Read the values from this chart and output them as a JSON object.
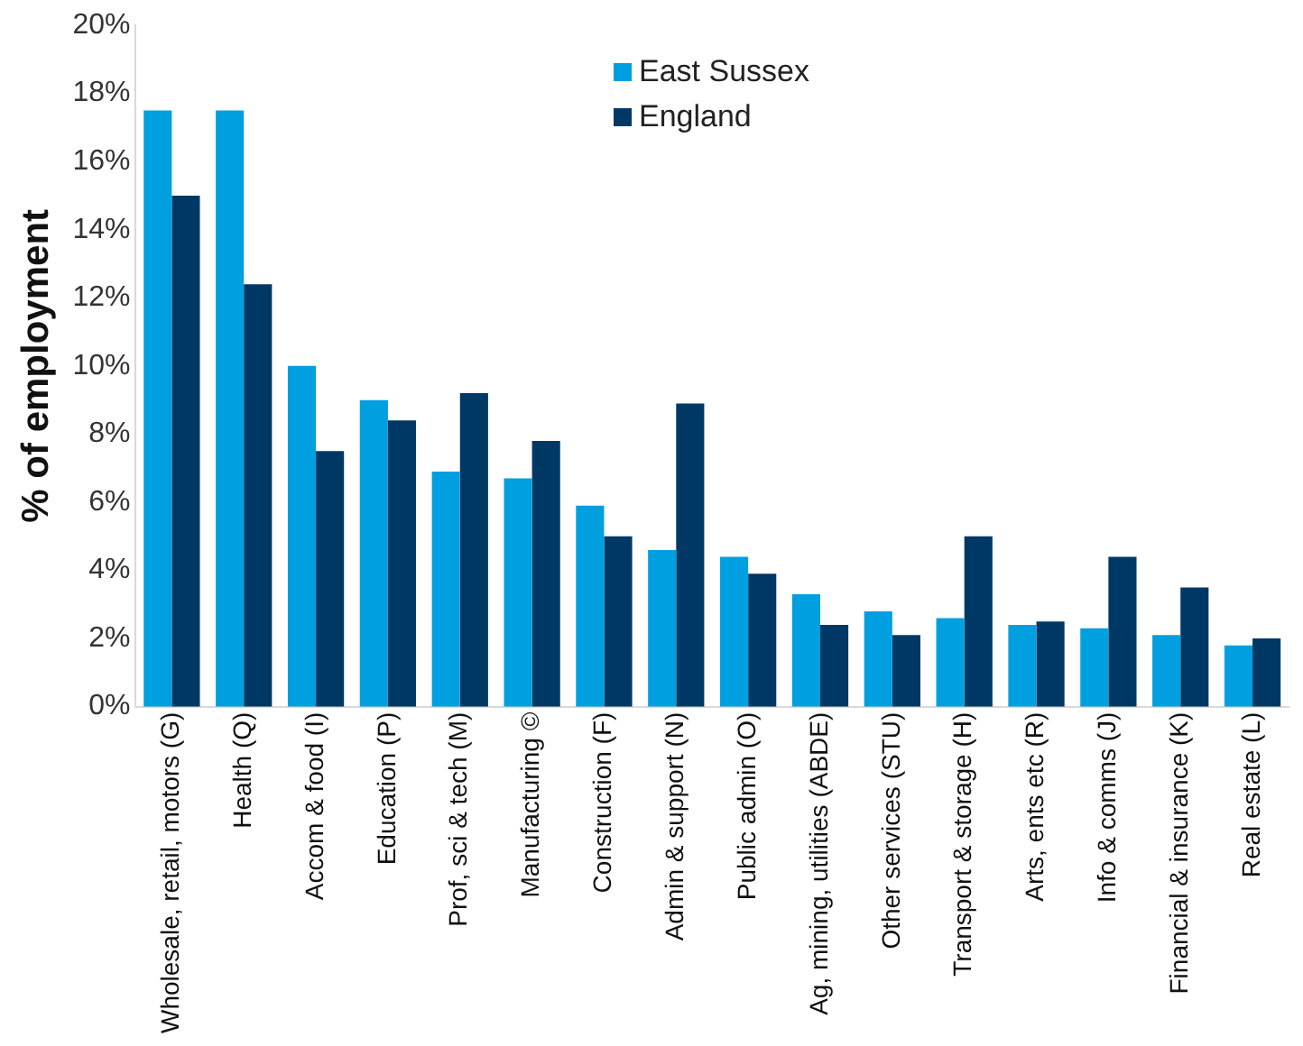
{
  "chart_data": {
    "type": "bar",
    "ylabel": "% of employment",
    "categories": [
      "Wholesale, retail, motors (G)",
      "Health (Q)",
      "Accom & food (I)",
      "Education (P)",
      "Prof, sci & tech (M)",
      "Manufacturing ©",
      "Construction (F)",
      "Admin & support (N)",
      "Public admin (O)",
      "Ag, mining, utilities (ABDE)",
      "Other services (STU)",
      "Transport & storage (H)",
      "Arts, ents etc (R)",
      "Info & comms (J)",
      "Financial & insurance (K)",
      "Real estate (L)"
    ],
    "series": [
      {
        "name": "East Sussex",
        "color": "#009fdf",
        "values": [
          17.5,
          17.5,
          10.0,
          9.0,
          6.9,
          6.7,
          5.9,
          4.6,
          4.4,
          3.3,
          2.8,
          2.6,
          2.4,
          2.3,
          2.1,
          1.8
        ]
      },
      {
        "name": "England",
        "color": "#003865",
        "values": [
          15.0,
          12.4,
          7.5,
          8.4,
          9.2,
          7.8,
          5.0,
          8.9,
          3.9,
          2.4,
          2.1,
          5.0,
          2.5,
          4.4,
          3.5,
          2.0
        ]
      }
    ],
    "ylim": [
      0,
      20
    ],
    "yticks": [
      {
        "value": 0,
        "label": "0%"
      },
      {
        "value": 2,
        "label": "2%"
      },
      {
        "value": 4,
        "label": "4%"
      },
      {
        "value": 6,
        "label": "6%"
      },
      {
        "value": 8,
        "label": "8%"
      },
      {
        "value": 10,
        "label": "10%"
      },
      {
        "value": 12,
        "label": "12%"
      },
      {
        "value": 14,
        "label": "14%"
      },
      {
        "value": 16,
        "label": "16%"
      },
      {
        "value": 18,
        "label": "18%"
      },
      {
        "value": 20,
        "label": "20%"
      }
    ],
    "grid": false,
    "legend": "top"
  }
}
